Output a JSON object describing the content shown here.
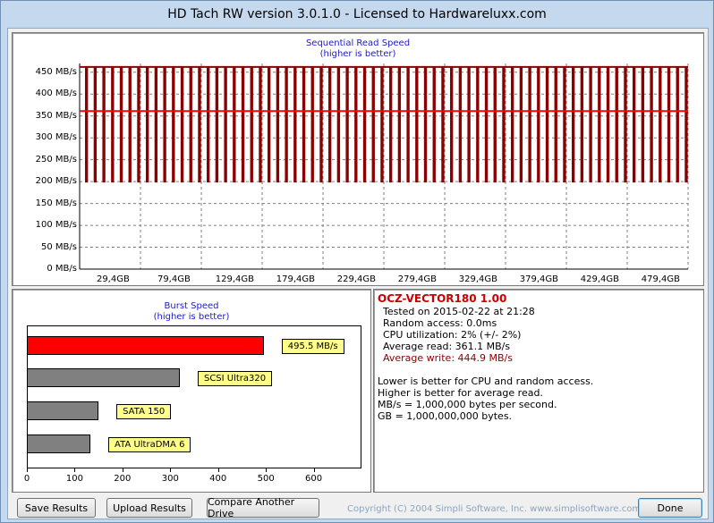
{
  "window": {
    "title": "HD Tach RW version 3.0.1.0 - Licensed to Hardwareluxx.com"
  },
  "read_chart": {
    "title": "Sequential Read Speed",
    "subtitle": "(higher is better)",
    "y_ticks": [
      "450 MB/s",
      "400 MB/s",
      "350 MB/s",
      "300 MB/s",
      "250 MB/s",
      "200 MB/s",
      "150 MB/s",
      "100 MB/s",
      "50 MB/s",
      "0 MB/s"
    ],
    "x_ticks": [
      "29,4GB",
      "79,4GB",
      "129,4GB",
      "179,4GB",
      "229,4GB",
      "279,4GB",
      "329,4GB",
      "379,4GB",
      "429,4GB",
      "479,4GB"
    ],
    "colors": {
      "read": "#8b0000",
      "average": "#ff0000",
      "grid": "#808080"
    }
  },
  "chart_data": [
    {
      "type": "line",
      "title": "Sequential Read Speed",
      "subtitle": "(higher is better)",
      "xlabel": "",
      "ylabel": "",
      "ylim": [
        0,
        470
      ],
      "xlim": [
        0,
        479.4
      ],
      "read_pattern": {
        "high": 462,
        "low": 200,
        "segments": 70
      },
      "average_read": 361.1,
      "grid": true
    },
    {
      "type": "bar",
      "title": "Burst Speed",
      "subtitle": "(higher is better)",
      "categories": [
        "OCZ-VECTOR180 1.00",
        "SCSI Ultra320",
        "SATA 150",
        "ATA UltraDMA 6"
      ],
      "values": [
        495.5,
        320,
        150,
        133
      ],
      "labels": [
        "495.5 MB/s",
        "SCSI Ultra320",
        "SATA 150",
        "ATA UltraDMA 6"
      ],
      "xlim": [
        0,
        700
      ],
      "x_ticks": [
        "0",
        "100",
        "200",
        "300",
        "400",
        "500",
        "600"
      ],
      "colors": [
        "#ff0000",
        "#808080",
        "#808080",
        "#808080"
      ]
    }
  ],
  "burst_chart": {
    "title": "Burst Speed",
    "subtitle": "(higher is better)",
    "x_ticks": [
      "0",
      "100",
      "200",
      "300",
      "400",
      "500",
      "600"
    ],
    "bars": [
      {
        "label": "495.5 MB/s",
        "value": 495.5,
        "color": "#ff0000"
      },
      {
        "label": "SCSI Ultra320",
        "value": 320,
        "color": "#808080"
      },
      {
        "label": "SATA 150",
        "value": 150,
        "color": "#808080"
      },
      {
        "label": "ATA UltraDMA 6",
        "value": 133,
        "color": "#808080"
      }
    ]
  },
  "info": {
    "drive": "OCZ-VECTOR180 1.00",
    "tested": "Tested on 2015-02-22 at 21:28",
    "random_access": "Random access: 0.0ms",
    "cpu": "CPU utilization: 2% (+/- 2%)",
    "avg_read": "Average read: 361.1 MB/s",
    "avg_write": "Average write: 444.9 MB/s",
    "note1": "Lower is better for CPU and random access.",
    "note2": "Higher is better for average read.",
    "note3": "MB/s = 1,000,000 bytes per second.",
    "note4": "GB = 1,000,000,000 bytes.",
    "colors": {
      "drive": "#cc0000",
      "write": "#8b0000"
    }
  },
  "buttons": {
    "save": "Save Results",
    "upload": "Upload Results",
    "compare": "Compare Another Drive",
    "done": "Done"
  },
  "copyright": "Copyright (C) 2004 Simpli Software, Inc. www.simplisoftware.com"
}
